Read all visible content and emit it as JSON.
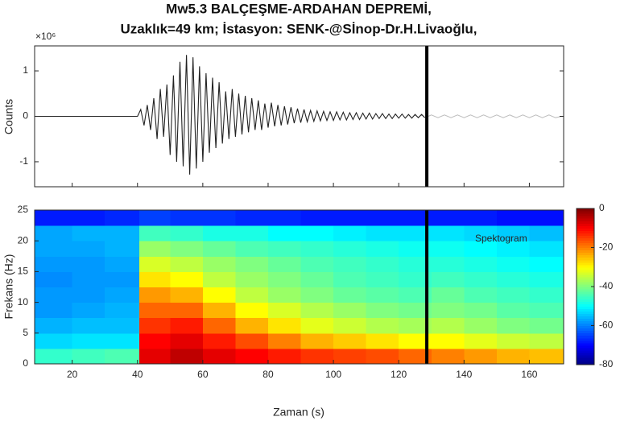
{
  "chart_data": [
    {
      "type": "line",
      "title": [
        "Mw5.3 BALÇEŞME-ARDAHAN DEPREMİ,",
        "Uzaklık=49 km; İstasyon: SENK-@Sİnop-Dr.H.Livaoğlu,"
      ],
      "exponent_label": "×10⁶",
      "ylabel": "Counts",
      "xlim": [
        8.5,
        170.5
      ],
      "ylim": [
        -1.55,
        1.55
      ],
      "yticks": [
        -1,
        0,
        1
      ],
      "cursor_x": 128.6,
      "series": [
        {
          "color": "#222222",
          "faded_color": "#bdbdbd",
          "x": [
            9,
            40,
            41,
            42,
            43,
            44,
            45,
            46,
            47,
            48,
            49,
            50,
            51,
            52,
            53,
            54,
            55,
            56,
            57,
            58,
            59,
            60,
            61,
            62,
            63,
            64,
            65,
            66,
            67,
            68,
            69,
            70,
            71,
            72,
            73,
            74,
            75,
            76,
            77,
            78,
            79,
            80,
            81,
            82,
            83,
            84,
            85,
            86,
            87,
            88,
            89,
            90,
            91,
            92,
            93,
            94,
            95,
            96,
            97,
            98,
            99,
            100,
            101,
            102,
            103,
            104,
            105,
            106,
            107,
            108,
            109,
            110,
            111,
            112,
            113,
            114,
            115,
            116,
            117,
            118,
            119,
            120,
            121,
            122,
            123,
            124,
            125,
            126,
            127,
            128,
            130,
            132,
            134,
            136,
            138,
            140,
            142,
            144,
            146,
            148,
            150,
            152,
            154,
            156,
            158,
            160,
            162,
            164,
            166,
            168,
            170
          ],
          "values": [
            0,
            0,
            0.15,
            -0.2,
            0.25,
            -0.3,
            0.4,
            -0.5,
            0.6,
            -0.45,
            0.7,
            -0.85,
            0.9,
            -1.0,
            1.2,
            -1.1,
            1.35,
            -1.28,
            1.3,
            -1.15,
            1.1,
            -1.0,
            0.95,
            -0.8,
            0.85,
            -0.7,
            0.75,
            -0.6,
            0.55,
            -0.5,
            0.6,
            -0.45,
            0.5,
            -0.4,
            0.45,
            -0.35,
            0.4,
            -0.3,
            0.35,
            -0.3,
            0.28,
            -0.25,
            0.3,
            -0.22,
            0.25,
            -0.2,
            0.22,
            -0.18,
            0.2,
            -0.15,
            0.17,
            -0.14,
            0.15,
            -0.12,
            0.13,
            -0.11,
            0.12,
            -0.1,
            0.11,
            -0.09,
            0.1,
            -0.09,
            0.1,
            -0.08,
            0.09,
            -0.08,
            0.08,
            -0.07,
            0.08,
            -0.07,
            0.07,
            -0.06,
            0.07,
            -0.06,
            0.06,
            -0.05,
            0.06,
            -0.05,
            0.05,
            -0.05,
            0.05,
            -0.04,
            0.05,
            -0.04,
            0.04,
            -0.04,
            0.04,
            -0.03,
            0.04,
            -0.03,
            0.03,
            -0.03,
            0.03,
            -0.03,
            0.03,
            -0.03,
            0.03,
            -0.03,
            0.03,
            -0.03,
            0.03,
            -0.03,
            0.03,
            -0.03,
            0.03,
            -0.03,
            0.03,
            -0.03,
            0.03,
            -0.03,
            0
          ]
        }
      ]
    },
    {
      "type": "spectrogram",
      "xlabel": "Zaman (s)",
      "ylabel": "Frekans (Hz)",
      "annotation": "Spektogram",
      "xlim": [
        8.5,
        170.5
      ],
      "xticks": [
        20,
        40,
        60,
        80,
        100,
        120,
        140,
        160
      ],
      "ylim": [
        0,
        25
      ],
      "yticks": [
        0,
        5,
        10,
        15,
        20,
        25
      ],
      "clim": [
        -80,
        0
      ],
      "cticks": [
        0,
        -20,
        -40,
        -60,
        -80
      ],
      "colormap": "jet",
      "cursor_x": 128.6,
      "x_bins": [
        8.5,
        20,
        30,
        40.5,
        50,
        60,
        70,
        80,
        90,
        100,
        110,
        120,
        130,
        140,
        150,
        160,
        170.5
      ],
      "y_bins": [
        0,
        2.5,
        5,
        7.5,
        10,
        12.5,
        15,
        17.5,
        20,
        22.5,
        25
      ],
      "values": [
        [
          -46,
          -53,
          -56,
          -58,
          -58,
          -59,
          -58,
          -57,
          -57,
          -68
        ],
        [
          -45,
          -52,
          -55,
          -57,
          -58,
          -58,
          -58,
          -57,
          -56,
          -68
        ],
        [
          -44,
          -52,
          -55,
          -56,
          -57,
          -58,
          -57,
          -56,
          -56,
          -67
        ],
        [
          -8,
          -10,
          -14,
          -18,
          -22,
          -28,
          -33,
          -38,
          -45,
          -65
        ],
        [
          -5,
          -8,
          -12,
          -18,
          -24,
          -30,
          -35,
          -40,
          -46,
          -66
        ],
        [
          -8,
          -12,
          -18,
          -24,
          -30,
          -35,
          -38,
          -42,
          -48,
          -66
        ],
        [
          -10,
          -16,
          -24,
          -30,
          -35,
          -38,
          -40,
          -44,
          -48,
          -67
        ],
        [
          -12,
          -20,
          -28,
          -33,
          -38,
          -40,
          -42,
          -45,
          -50,
          -67
        ],
        [
          -14,
          -24,
          -32,
          -36,
          -40,
          -42,
          -44,
          -46,
          -50,
          -68
        ],
        [
          -15,
          -26,
          -34,
          -38,
          -42,
          -44,
          -45,
          -47,
          -51,
          -68
        ],
        [
          -16,
          -28,
          -36,
          -40,
          -43,
          -45,
          -46,
          -48,
          -52,
          -68
        ],
        [
          -18,
          -30,
          -37,
          -41,
          -44,
          -46,
          -47,
          -49,
          -52,
          -68
        ],
        [
          -20,
          -30,
          -36,
          -40,
          -42,
          -45,
          -47,
          -49,
          -52,
          -68
        ],
        [
          -22,
          -32,
          -38,
          -41,
          -44,
          -46,
          -48,
          -50,
          -53,
          -68
        ],
        [
          -24,
          -34,
          -40,
          -43,
          -45,
          -47,
          -49,
          -51,
          -54,
          -69
        ],
        [
          -25,
          -35,
          -41,
          -44,
          -46,
          -48,
          -50,
          -52,
          -55,
          -69
        ]
      ]
    }
  ]
}
